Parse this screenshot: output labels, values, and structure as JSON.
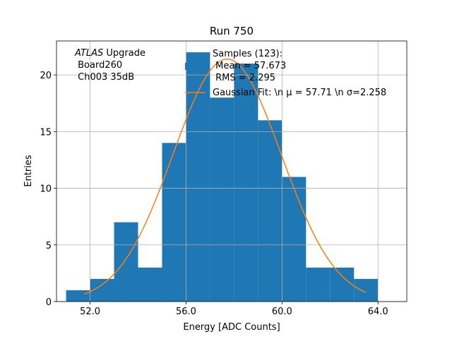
{
  "chart_data": {
    "type": "bar",
    "title": "Run 750",
    "xlabel": "Energy [ADC Counts]",
    "ylabel": "Entries",
    "xlim": [
      50.6,
      65.2
    ],
    "ylim": [
      0,
      23
    ],
    "xticks": [
      52.0,
      56.0,
      60.0,
      64.0
    ],
    "xtick_labels": [
      "52.0",
      "56.0",
      "60.0",
      "64.0"
    ],
    "yticks": [
      0,
      5,
      10,
      15,
      20
    ],
    "ytick_labels": [
      "0",
      "5",
      "10",
      "15",
      "20"
    ],
    "grid": true,
    "bin_edges": [
      51,
      52,
      53,
      54,
      55,
      56,
      57,
      58,
      59,
      60,
      61,
      62,
      63,
      64
    ],
    "counts": [
      1,
      2,
      7,
      3,
      14,
      22,
      18,
      21,
      16,
      11,
      3,
      3,
      2
    ],
    "bar_color": "#1f77b4",
    "fit": {
      "type": "line",
      "color": "#ff7f0e",
      "mu": 57.71,
      "sigma": 2.258,
      "amplitude": 21.4,
      "x_range": [
        51.75,
        63.5
      ]
    },
    "annotation": {
      "italic": "ATLAS",
      "line1_rest": " Upgrade",
      "line2": " Board260",
      "line3": " Ch003 35dB"
    },
    "legend": {
      "position": "top-center",
      "hist_line1": "Samples (123):",
      "hist_line2": " Mean = 57.673",
      "hist_line3": " RMS = 2.295",
      "fit_label": "Gaussian Fit: \\n μ = 57.71 \\n σ=2.258"
    }
  }
}
